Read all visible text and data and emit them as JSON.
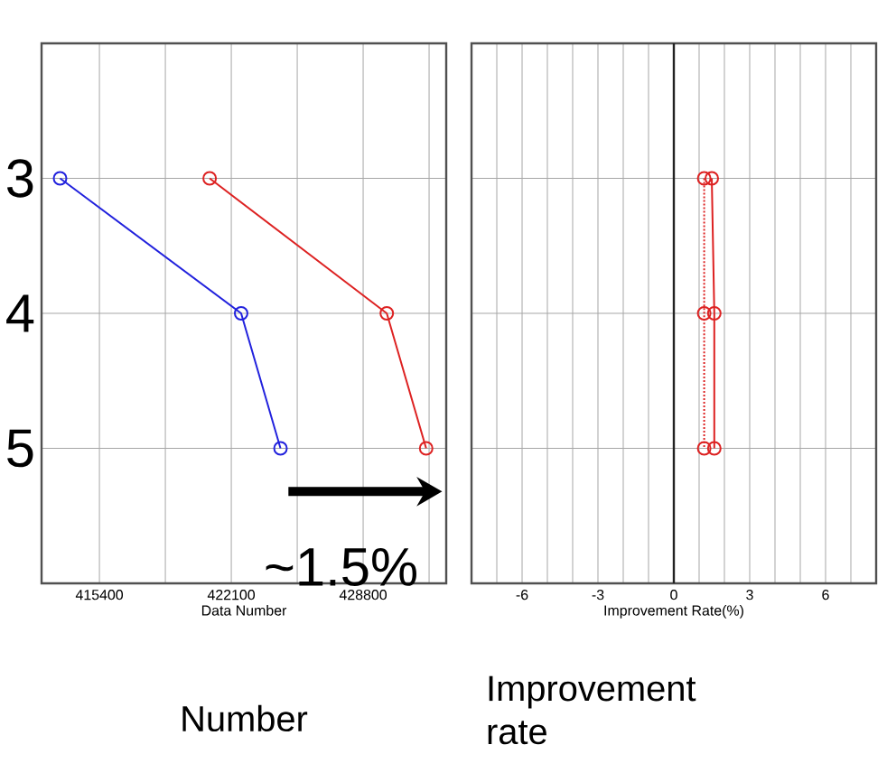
{
  "chart_data": [
    {
      "type": "line",
      "xlabel": "Data Number",
      "xlim": [
        412460,
        433020
      ],
      "ylim": [
        6,
        2
      ],
      "yticks": [
        3,
        4,
        5
      ],
      "grid": true,
      "marker": "circle",
      "xticks": [
        415400,
        {
          "value": 418750,
          "label": null
        },
        422100,
        {
          "value": 425450,
          "label": null
        },
        428800,
        {
          "value": 432150,
          "label": null
        }
      ],
      "series": [
        {
          "color": "#2222dd",
          "x": [
            413400,
            422600,
            424600
          ],
          "values": [
            3,
            4,
            5
          ]
        },
        {
          "color": "#dd2222",
          "x": [
            421000,
            430000,
            432000
          ],
          "values": [
            3,
            4,
            5
          ]
        }
      ],
      "annotations": [
        "~1.5%",
        "Number"
      ]
    },
    {
      "type": "line",
      "xlabel": "Improvement Rate(%)",
      "xlim": [
        -8,
        8
      ],
      "ylim": [
        6,
        2
      ],
      "yticks": [
        3,
        4,
        5
      ],
      "grid": true,
      "marker": "circle",
      "tick_labels": "x",
      "xticks": [
        {
          "value": -7,
          "label": null
        },
        -6,
        {
          "value": -5,
          "label": null
        },
        {
          "value": -4,
          "label": null
        },
        -3,
        {
          "value": -2,
          "label": null
        },
        {
          "value": -1,
          "label": null
        },
        0,
        {
          "value": 1,
          "label": null
        },
        {
          "value": 2,
          "label": null
        },
        3,
        {
          "value": 4,
          "label": null
        },
        {
          "value": 5,
          "label": null
        },
        6,
        {
          "value": 7,
          "label": null
        }
      ],
      "ref_lines": [
        {
          "axis": "x",
          "value": 0,
          "color": "#222222"
        }
      ],
      "series": [
        {
          "color": "#dd2222",
          "x": [
            1.5,
            1.6,
            1.6
          ],
          "values": [
            3,
            4,
            5
          ],
          "line_style": "solid"
        },
        {
          "color": "#dd2222",
          "x": [
            1.2,
            1.2,
            1.2
          ],
          "values": [
            3,
            4,
            5
          ],
          "line_style": "dotted"
        }
      ],
      "annotations": [
        "Improvement rate"
      ]
    }
  ]
}
